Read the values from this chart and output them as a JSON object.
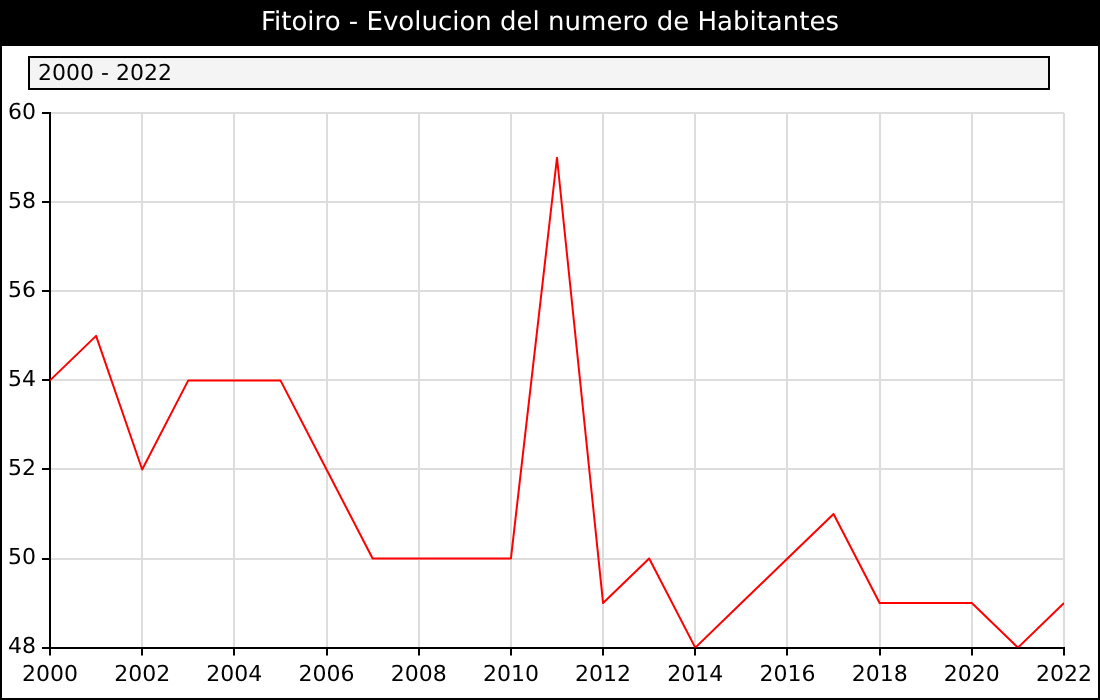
{
  "chart_data": {
    "type": "line",
    "title": "Fitoiro - Evolucion del numero de Habitantes",
    "subtitle": "2000 - 2022",
    "x": [
      2000,
      2001,
      2002,
      2003,
      2004,
      2005,
      2006,
      2007,
      2008,
      2009,
      2010,
      2011,
      2012,
      2013,
      2014,
      2015,
      2016,
      2017,
      2018,
      2019,
      2020,
      2021,
      2022
    ],
    "series": [
      {
        "color": "#ff0000",
        "values": [
          54,
          55,
          52,
          54,
          54,
          54,
          52,
          50,
          50,
          50,
          50,
          59,
          49,
          50,
          48,
          49,
          50,
          51,
          49,
          49,
          49,
          48,
          49
        ]
      }
    ],
    "xlim": [
      2000,
      2022
    ],
    "xticks": [
      2000,
      2002,
      2004,
      2006,
      2008,
      2010,
      2012,
      2014,
      2016,
      2018,
      2020,
      2022
    ],
    "ylim": [
      48,
      60
    ],
    "yticks": [
      48,
      50,
      52,
      54,
      56,
      58,
      60
    ],
    "grid": true,
    "marker": "none",
    "line_style": "solid",
    "legend": false
  }
}
